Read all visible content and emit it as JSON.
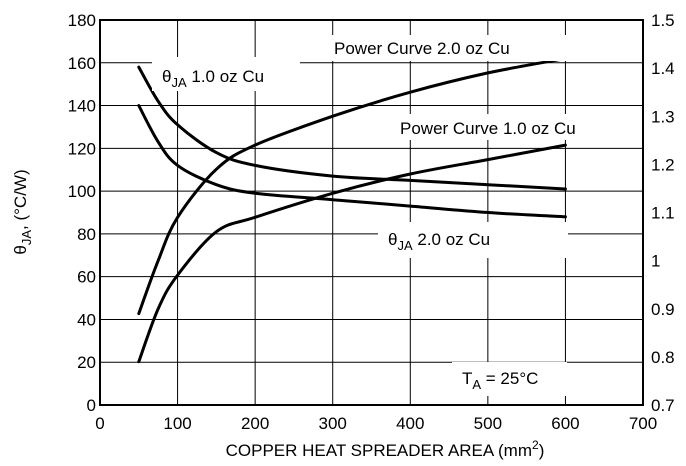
{
  "chart_data": {
    "type": "line",
    "xlabel": "COPPER HEAT SPREADER AREA (mm",
    "xlabel_sup": "2",
    "xlabel_end": ")",
    "ylabel_left": {
      "theta": "θ",
      "sub": "JA",
      "rest": ", (°C/W)"
    },
    "xlim": [
      0,
      700
    ],
    "ylim_left": [
      0,
      180
    ],
    "ylim_right": [
      0.7,
      1.5
    ],
    "x_ticks": [
      "0",
      "100",
      "200",
      "300",
      "400",
      "500",
      "600",
      "700"
    ],
    "y_left_ticks": [
      "0",
      "20",
      "40",
      "60",
      "80",
      "100",
      "120",
      "140",
      "160",
      "180"
    ],
    "y_right_ticks": [
      "0.7",
      "0.8",
      "0.9",
      "1",
      "1.1",
      "1.2",
      "1.3",
      "1.4",
      "1.5"
    ],
    "grid": true,
    "series": [
      {
        "name": "θJA 1.0 oz Cu",
        "axis": "left",
        "x": [
          50,
          75,
          100,
          150,
          200,
          300,
          400,
          500,
          600
        ],
        "y": [
          158,
          142,
          131,
          118,
          112,
          107,
          105,
          103,
          101
        ]
      },
      {
        "name": "θJA 2.0 oz Cu",
        "axis": "left",
        "x": [
          50,
          75,
          100,
          150,
          200,
          300,
          400,
          500,
          600
        ],
        "y": [
          140,
          123,
          112,
          103,
          99,
          96,
          93,
          90,
          88
        ]
      },
      {
        "name": "Power Curve 2.0 oz Cu",
        "axis": "right",
        "x": [
          50,
          75,
          100,
          150,
          200,
          300,
          400,
          500,
          600
        ],
        "y": [
          0.89,
          1.0,
          1.09,
          1.19,
          1.24,
          1.3,
          1.35,
          1.39,
          1.42
        ]
      },
      {
        "name": "Power Curve 1.0 oz Cu",
        "axis": "right",
        "x": [
          50,
          75,
          100,
          150,
          200,
          300,
          400,
          500,
          600
        ],
        "y": [
          0.79,
          0.9,
          0.97,
          1.06,
          1.09,
          1.14,
          1.18,
          1.21,
          1.24
        ]
      }
    ],
    "annotations": {
      "theta_1oz": {
        "theta": "θ",
        "sub": "JA",
        "rest": " 1.0 oz Cu"
      },
      "theta_2oz": {
        "theta": "θ",
        "sub": "JA",
        "rest": " 2.0 oz Cu"
      },
      "power_2oz": "Power Curve 2.0 oz Cu",
      "power_1oz": "Power Curve 1.0 oz Cu",
      "ta": {
        "t": "T",
        "sub": "A",
        "rest": " = 25°C"
      }
    }
  }
}
